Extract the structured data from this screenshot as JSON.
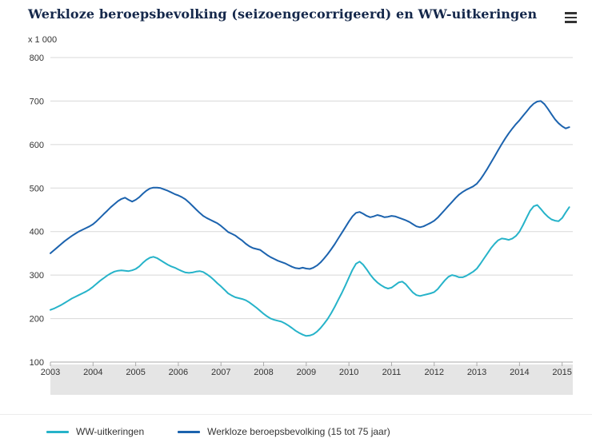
{
  "header": {
    "title": "Werkloze beroepsbevolking (seizoengecorrigeerd) en WW-uitkeringen",
    "menu_icon": "hamburger-menu-icon"
  },
  "chart_data": {
    "type": "line",
    "title": "Werkloze beroepsbevolking (seizoengecorrigeerd) en WW-uitkeringen",
    "unit_label": "x 1 000",
    "xlabel": "",
    "ylabel": "x 1 000",
    "x_ticks": [
      2003,
      2004,
      2005,
      2006,
      2007,
      2008,
      2009,
      2010,
      2011,
      2012,
      2013,
      2014,
      2015
    ],
    "x_range": [
      2003,
      2015.25
    ],
    "y_ticks": [
      100,
      200,
      300,
      400,
      500,
      600,
      700,
      800
    ],
    "y_range": [
      100,
      800
    ],
    "grid": true,
    "legend_position": "bottom",
    "frequency": "monthly",
    "x_start_year": 2003,
    "colors": {
      "grid": "#d8d8d8",
      "axis": "#aaaaaa",
      "band": "#e5e5e5",
      "tick_text": "#333333"
    },
    "series": [
      {
        "name": "WW-uitkeringen",
        "color": "#26b3c9",
        "values": [
          220,
          223,
          227,
          231,
          236,
          241,
          246,
          250,
          254,
          258,
          262,
          267,
          273,
          280,
          287,
          293,
          299,
          304,
          308,
          310,
          311,
          310,
          309,
          311,
          314,
          320,
          328,
          335,
          340,
          342,
          339,
          334,
          329,
          324,
          320,
          317,
          313,
          309,
          306,
          305,
          306,
          308,
          309,
          307,
          302,
          296,
          289,
          281,
          274,
          266,
          258,
          253,
          249,
          247,
          245,
          242,
          237,
          231,
          225,
          218,
          211,
          205,
          200,
          197,
          195,
          193,
          189,
          184,
          178,
          172,
          167,
          163,
          160,
          161,
          164,
          170,
          178,
          188,
          199,
          212,
          227,
          243,
          259,
          276,
          294,
          312,
          326,
          331,
          324,
          313,
          301,
          291,
          283,
          277,
          272,
          269,
          271,
          277,
          283,
          285,
          279,
          269,
          260,
          254,
          252,
          254,
          256,
          258,
          261,
          268,
          278,
          288,
          296,
          300,
          298,
          295,
          295,
          298,
          303,
          308,
          315,
          326,
          338,
          350,
          362,
          372,
          380,
          384,
          383,
          381,
          384,
          390,
          400,
          415,
          432,
          448,
          458,
          461,
          452,
          442,
          434,
          428,
          425,
          424,
          431,
          444,
          456
        ]
      },
      {
        "name": "Werkloze beroepsbevolking (15 tot 75 jaar)",
        "color": "#1c63ae",
        "values": [
          350,
          357,
          364,
          371,
          378,
          384,
          390,
          395,
          400,
          404,
          408,
          412,
          417,
          424,
          432,
          440,
          448,
          456,
          463,
          470,
          475,
          478,
          473,
          469,
          473,
          479,
          487,
          494,
          499,
          501,
          501,
          500,
          497,
          494,
          490,
          486,
          483,
          479,
          474,
          467,
          459,
          451,
          443,
          436,
          431,
          427,
          423,
          419,
          413,
          406,
          399,
          395,
          391,
          385,
          379,
          372,
          366,
          362,
          360,
          358,
          352,
          346,
          341,
          337,
          333,
          330,
          327,
          323,
          319,
          316,
          315,
          317,
          315,
          314,
          317,
          322,
          329,
          338,
          348,
          359,
          371,
          384,
          397,
          410,
          423,
          435,
          443,
          445,
          441,
          436,
          433,
          435,
          438,
          436,
          433,
          434,
          436,
          435,
          432,
          429,
          426,
          422,
          417,
          412,
          410,
          412,
          416,
          420,
          425,
          432,
          441,
          450,
          459,
          468,
          477,
          485,
          491,
          496,
          500,
          504,
          510,
          520,
          532,
          545,
          559,
          573,
          587,
          601,
          614,
          626,
          637,
          647,
          656,
          666,
          676,
          686,
          694,
          699,
          700,
          693,
          682,
          670,
          658,
          649,
          642,
          637,
          640
        ]
      }
    ]
  }
}
